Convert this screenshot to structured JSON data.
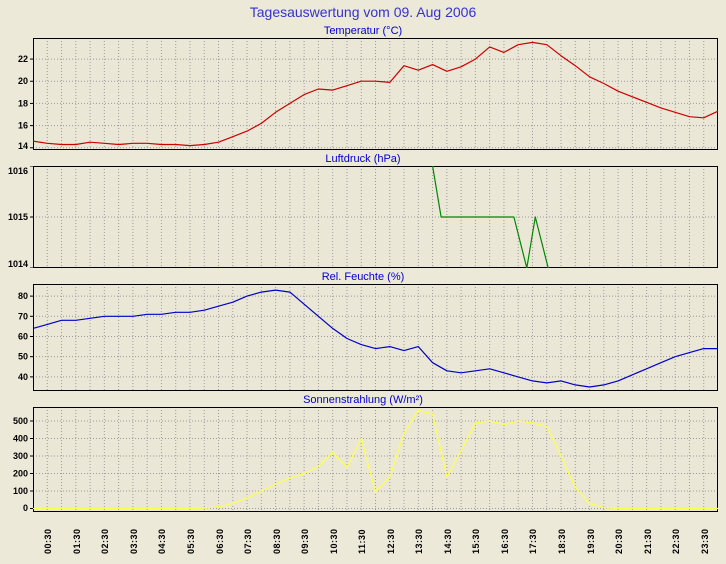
{
  "page": {
    "title": "Tagesauswertung vom 09. Aug 2006"
  },
  "colors": {
    "background": "#ece9d8",
    "plot_background": "#eae7d7",
    "grid": "#9b9b9b",
    "axis": "#000000",
    "title_blue": "#0000cc"
  },
  "x_labels": [
    "00:30",
    "01:30",
    "02:30",
    "03:30",
    "04:30",
    "05:30",
    "06:30",
    "07:30",
    "08:30",
    "09:30",
    "10:30",
    "11:30",
    "12:30",
    "13:30",
    "14:30",
    "15:30",
    "16:30",
    "17:30",
    "18:30",
    "19:30",
    "20:30",
    "21:30",
    "22:30",
    "23:30"
  ],
  "chart_data": [
    {
      "type": "line",
      "name": "temperature",
      "title": "Temperatur (°C)",
      "color": "#cc0000",
      "xlim": [
        0,
        24
      ],
      "ylim": [
        13.8,
        23.9
      ],
      "yticks": [
        14,
        16,
        18,
        20,
        22
      ],
      "x_start": 0,
      "x_step": 0.5,
      "values": [
        14.6,
        14.4,
        14.3,
        14.3,
        14.5,
        14.4,
        14.3,
        14.4,
        14.4,
        14.3,
        14.3,
        14.2,
        14.3,
        14.5,
        15.0,
        15.5,
        16.2,
        17.2,
        18.0,
        18.8,
        19.3,
        19.2,
        19.6,
        20.0,
        20.0,
        19.9,
        21.4,
        21.0,
        21.5,
        20.9,
        21.3,
        22.0,
        23.1,
        22.6,
        23.3,
        23.5,
        23.3,
        22.3,
        21.4,
        20.4,
        19.8,
        19.1,
        18.6,
        18.1,
        17.6,
        17.2,
        16.8,
        16.7,
        17.3
      ]
    },
    {
      "type": "line",
      "name": "pressure",
      "title": "Luftdruck (hPa)",
      "color": "#008800",
      "xlim": [
        0,
        24
      ],
      "ylim": [
        1014,
        1016
      ],
      "yticks": [
        1014,
        1015,
        1016
      ],
      "points": [
        [
          14.0,
          1016
        ],
        [
          14.3,
          1015
        ],
        [
          16.85,
          1015
        ],
        [
          17.3,
          1014
        ],
        [
          17.6,
          1015
        ],
        [
          18.05,
          1014
        ]
      ]
    },
    {
      "type": "line",
      "name": "humidity",
      "title": "Rel. Feuchte (%)",
      "color": "#0000cc",
      "xlim": [
        0,
        24
      ],
      "ylim": [
        33,
        86
      ],
      "yticks": [
        40,
        50,
        60,
        70,
        80
      ],
      "x_start": 0,
      "x_step": 0.5,
      "values": [
        64,
        66,
        68,
        68,
        69,
        70,
        70,
        70,
        71,
        71,
        72,
        72,
        73,
        75,
        77,
        80,
        82,
        83,
        82,
        76,
        70,
        64,
        59,
        56,
        54,
        55,
        53,
        55,
        47,
        43,
        42,
        43,
        44,
        42,
        40,
        38,
        37,
        38,
        36,
        35,
        36,
        38,
        41,
        44,
        47,
        50,
        52,
        54,
        54
      ]
    },
    {
      "type": "line",
      "name": "solar",
      "title": "Sonnenstrahlung (W/m²)",
      "color": "#ffff4d",
      "xlim": [
        0,
        24
      ],
      "ylim": [
        -20,
        580
      ],
      "yticks": [
        0,
        100,
        200,
        300,
        400,
        500
      ],
      "x_start": 0,
      "x_step": 0.5,
      "values": [
        0,
        0,
        0,
        0,
        0,
        0,
        0,
        0,
        0,
        0,
        0,
        0,
        2,
        10,
        30,
        60,
        100,
        140,
        175,
        200,
        240,
        320,
        235,
        400,
        95,
        180,
        430,
        560,
        540,
        180,
        330,
        490,
        500,
        480,
        500,
        490,
        470,
        300,
        120,
        30,
        5,
        0,
        0,
        0,
        0,
        0,
        0,
        0,
        0
      ]
    }
  ]
}
